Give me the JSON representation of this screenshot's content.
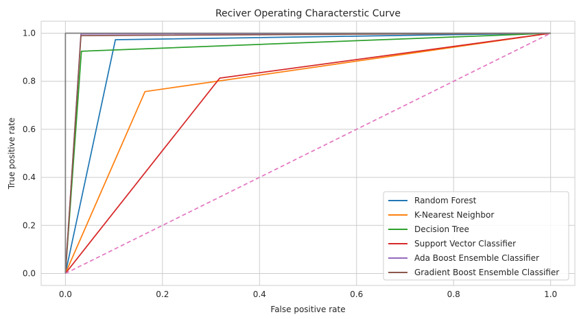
{
  "chart_data": {
    "type": "line",
    "title": "Reciver Operating Characterstic Curve",
    "xlabel": "False positive rate",
    "ylabel": "True positive rate",
    "xlim": [
      -0.05,
      1.05
    ],
    "ylim": [
      -0.05,
      1.05
    ],
    "xticks": [
      0.0,
      0.2,
      0.4,
      0.6,
      0.8,
      1.0
    ],
    "yticks": [
      0.0,
      0.2,
      0.4,
      0.6,
      0.8,
      1.0
    ],
    "xtick_labels": [
      "0.0",
      "0.2",
      "0.4",
      "0.6",
      "0.8",
      "1.0"
    ],
    "ytick_labels": [
      "0.0",
      "0.2",
      "0.4",
      "0.6",
      "0.8",
      "1.0"
    ],
    "grid": true,
    "legend_position": "lower-right",
    "series": [
      {
        "name": "Random Forest",
        "color": "#1f77b4",
        "dashed": false,
        "x": [
          0.0,
          0.103,
          1.0
        ],
        "y": [
          0.0,
          0.973,
          1.0
        ]
      },
      {
        "name": "K-Nearest Neighbor",
        "color": "#ff7f0e",
        "dashed": false,
        "x": [
          0.0,
          0.164,
          1.0
        ],
        "y": [
          0.0,
          0.757,
          1.0
        ]
      },
      {
        "name": "Decision Tree",
        "color": "#2ca02c",
        "dashed": false,
        "x": [
          0.0,
          0.033,
          1.0
        ],
        "y": [
          0.0,
          0.925,
          1.0
        ]
      },
      {
        "name": "Support Vector Classifier",
        "color": "#d62728",
        "dashed": false,
        "x": [
          0.0,
          0.318,
          1.0
        ],
        "y": [
          0.0,
          0.813,
          1.0
        ]
      },
      {
        "name": "Ada Boost Ensemble Classifier",
        "color": "#9467bd",
        "dashed": false,
        "x": [
          0.0,
          0.032,
          1.0
        ],
        "y": [
          0.0,
          0.997,
          1.0
        ]
      },
      {
        "name": "Gradient Boost Ensemble Classifier",
        "color": "#8c564b",
        "dashed": false,
        "x": [
          0.0,
          0.032,
          1.0
        ],
        "y": [
          0.0,
          0.99,
          1.0
        ]
      },
      {
        "name": "",
        "color": "#e377c2",
        "dashed": true,
        "x": [
          0.0,
          1.0
        ],
        "y": [
          0.0,
          1.0
        ]
      },
      {
        "name": "",
        "color": "#7f7f7f",
        "dashed": false,
        "x": [
          0.0,
          0.0,
          1.0
        ],
        "y": [
          0.0,
          1.0,
          1.0
        ]
      }
    ]
  }
}
